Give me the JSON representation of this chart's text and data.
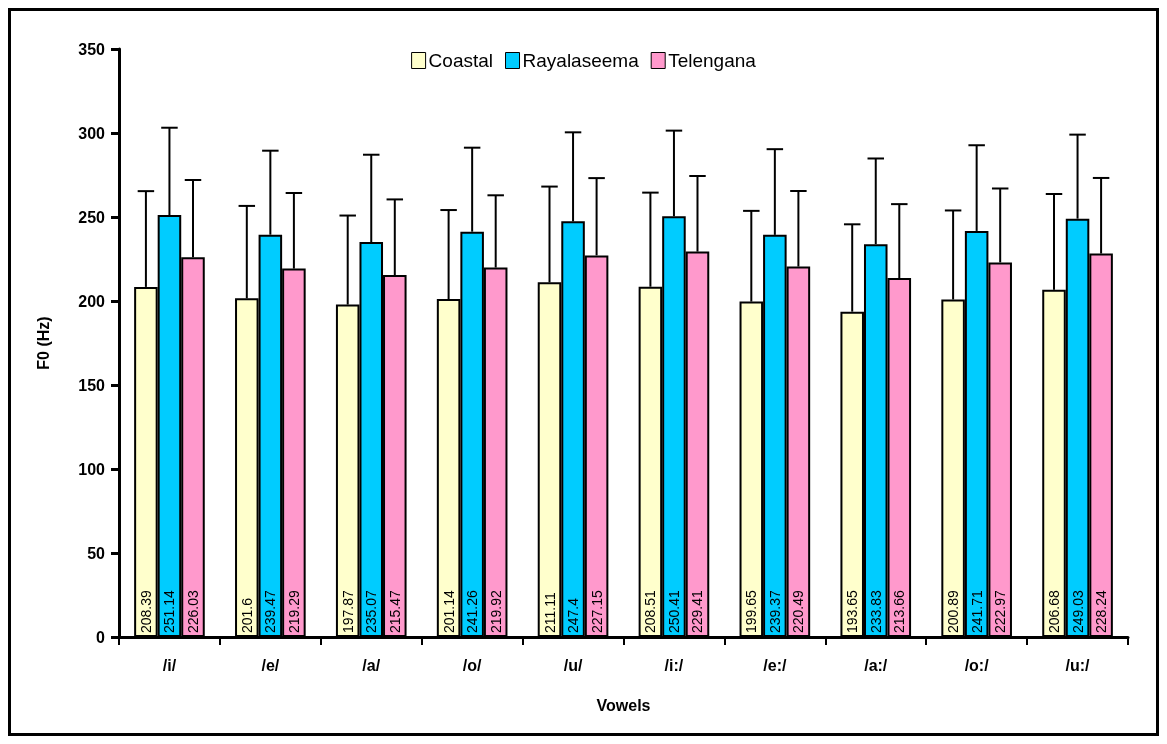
{
  "chart_data": {
    "type": "bar",
    "xlabel": "Vowels",
    "ylabel": "F0 (Hz)",
    "categories": [
      "/i/",
      "/e/",
      "/a/",
      "/o/",
      "/u/",
      "/i:/",
      "/e:/",
      "/a:/",
      "/o:/",
      "/u:/"
    ],
    "series": [
      {
        "name": "Coastal",
        "color": "#ffffcc",
        "values": [
          208.39,
          201.6,
          197.87,
          201.14,
          211.11,
          208.51,
          199.65,
          193.65,
          200.89,
          206.68
        ],
        "errors": [
          57,
          55,
          53,
          53,
          57,
          56,
          54,
          52,
          53,
          57
        ]
      },
      {
        "name": "Rayalaseema",
        "color": "#00ccff",
        "values": [
          251.14,
          239.47,
          235.07,
          241.26,
          247.4,
          250.41,
          239.37,
          233.83,
          241.71,
          249.03
        ],
        "errors": [
          52,
          50,
          52,
          50,
          53,
          51,
          51,
          51,
          51,
          50
        ]
      },
      {
        "name": "Telengana",
        "color": "#ff99cc",
        "values": [
          226.03,
          219.29,
          215.47,
          219.92,
          227.15,
          229.41,
          220.49,
          213.66,
          222.97,
          228.24
        ],
        "errors": [
          46,
          45,
          45,
          43,
          46,
          45,
          45,
          44,
          44,
          45
        ]
      }
    ],
    "ylim": [
      0,
      350
    ],
    "yticks": [
      0,
      50,
      100,
      150,
      200,
      250,
      300,
      350
    ],
    "grid": false,
    "legend": "top",
    "data_labels": true
  }
}
